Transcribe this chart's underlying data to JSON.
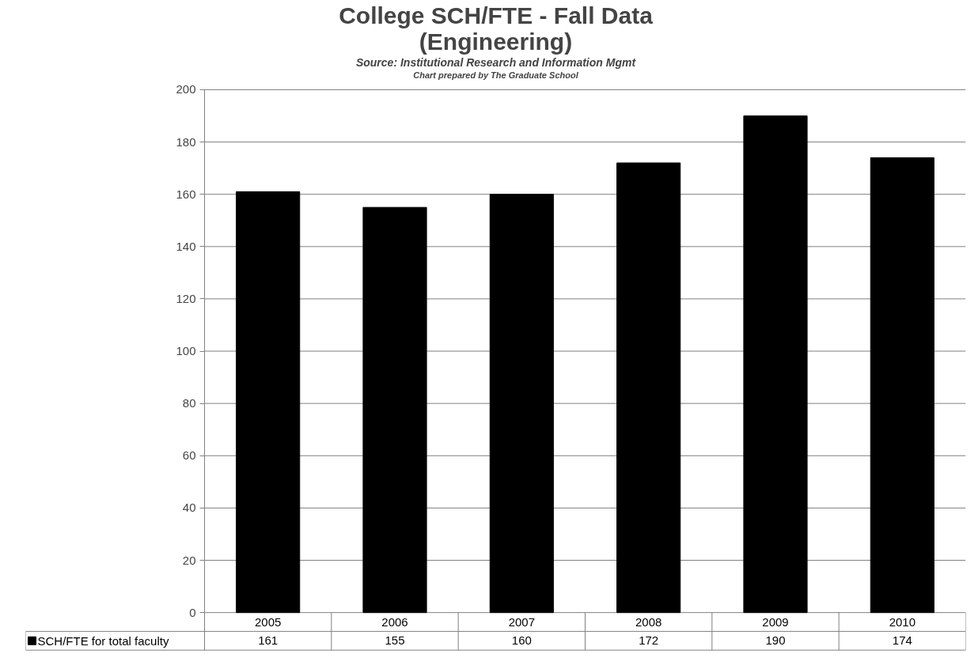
{
  "chart_data": {
    "type": "bar",
    "title": "College SCH/FTE - Fall Data\n(Engineering)",
    "annotations": [
      "Source: Institutional Research and Information Mgmt",
      "Chart prepared by The Graduate School"
    ],
    "categories": [
      "2005",
      "2006",
      "2007",
      "2008",
      "2009",
      "2010"
    ],
    "series": [
      {
        "name": "SCH/FTE for total faculty",
        "color": "#000000",
        "values": [
          161,
          155,
          160,
          172,
          190,
          174
        ]
      }
    ],
    "ylim": [
      0,
      200
    ],
    "yticks": [
      0,
      20,
      40,
      60,
      80,
      100,
      120,
      140,
      160,
      180,
      200
    ],
    "grid": "y",
    "legend": "bottom left",
    "data_labels": true
  }
}
